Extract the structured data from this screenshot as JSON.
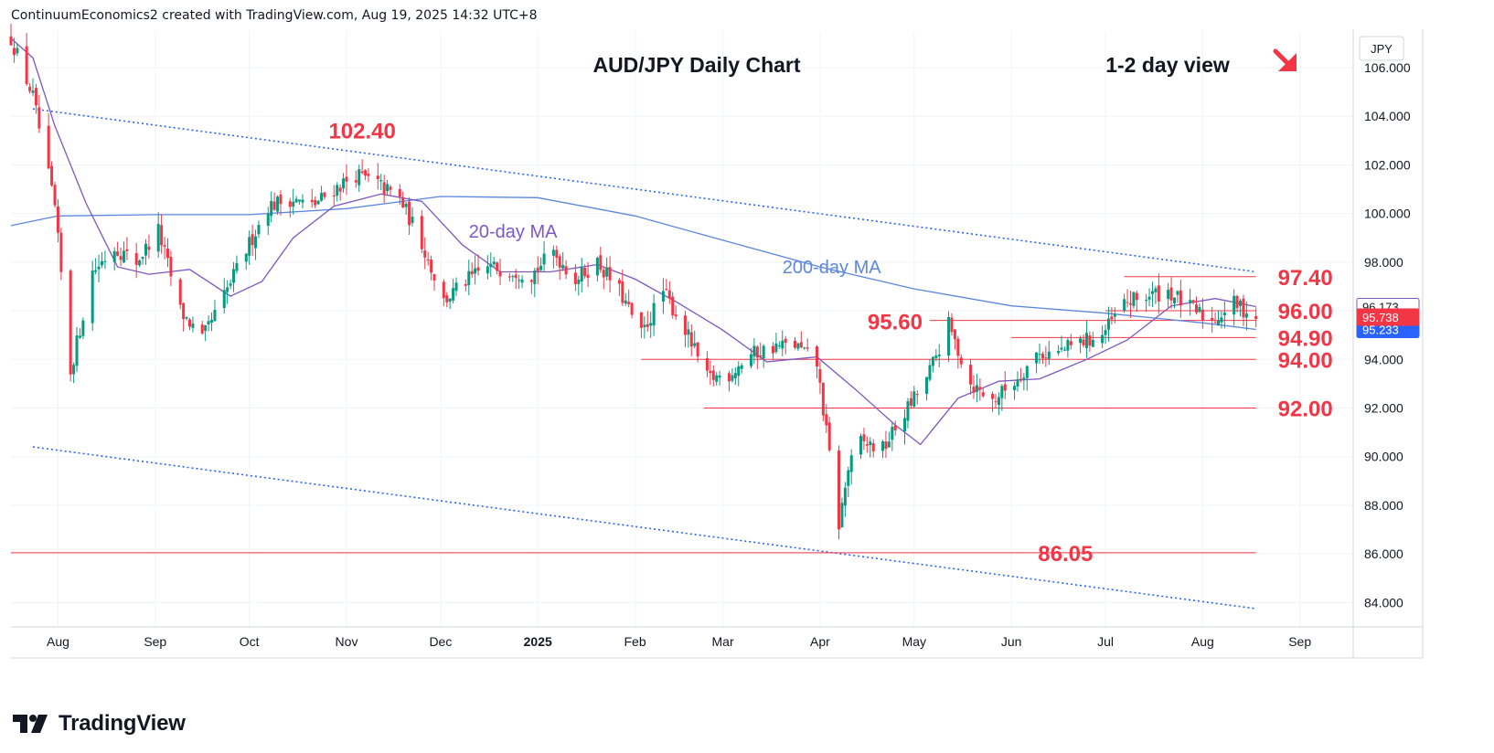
{
  "header": {
    "text": "ContinuumEconomics2 created with TradingView.com, Aug 19, 2025 14:32 UTC+8"
  },
  "footer": {
    "brand": "TradingView"
  },
  "colors": {
    "up": "#089981",
    "down": "#f23645",
    "ma20": "#7e57c2",
    "ma200": "#5b87e0",
    "trend": "#2962ff",
    "level": "#f23645",
    "price_badge": "#f23645",
    "ma_badge": "#2962ff"
  },
  "chart_data": {
    "type": "candlestick",
    "title": "AUD/JPY Daily Chart",
    "subtitle": "1-2 day view",
    "direction_icon": "arrow-down-right-icon",
    "currency": "JPY",
    "ylim": [
      83.0,
      107.5
    ],
    "xlim": [
      "2024-07-17",
      "2025-09-18"
    ],
    "y_ticks": [
      84,
      86,
      88,
      90,
      92,
      94,
      96,
      98,
      100,
      102,
      104,
      106
    ],
    "y_tick_labels": [
      "84.000",
      "86.000",
      "88.000",
      "90.000",
      "92.000",
      "94.000",
      "96.000",
      "98.000",
      "100.000",
      "102.000",
      "104.000",
      "106.000"
    ],
    "x_ticks": [
      {
        "date": "2024-08-01",
        "label": "Aug"
      },
      {
        "date": "2024-09-01",
        "label": "Sep"
      },
      {
        "date": "2024-10-01",
        "label": "Oct"
      },
      {
        "date": "2024-11-01",
        "label": "Nov"
      },
      {
        "date": "2024-12-01",
        "label": "Dec"
      },
      {
        "date": "2025-01-01",
        "label": "2025",
        "bold": true
      },
      {
        "date": "2025-02-01",
        "label": "Feb"
      },
      {
        "date": "2025-03-01",
        "label": "Mar"
      },
      {
        "date": "2025-04-01",
        "label": "Apr"
      },
      {
        "date": "2025-05-01",
        "label": "May"
      },
      {
        "date": "2025-06-01",
        "label": "Jun"
      },
      {
        "date": "2025-07-01",
        "label": "Jul"
      },
      {
        "date": "2025-08-01",
        "label": "Aug"
      },
      {
        "date": "2025-09-01",
        "label": "Sep"
      }
    ],
    "close_path": [
      [
        "2024-07-17",
        107.2
      ],
      [
        "2024-07-24",
        104.8
      ],
      [
        "2024-07-31",
        100.2
      ],
      [
        "2024-08-05",
        93.5
      ],
      [
        "2024-08-12",
        97.6
      ],
      [
        "2024-08-19",
        98.6
      ],
      [
        "2024-08-26",
        98.0
      ],
      [
        "2024-09-02",
        99.3
      ],
      [
        "2024-09-09",
        96.0
      ],
      [
        "2024-09-16",
        94.8
      ],
      [
        "2024-09-23",
        96.6
      ],
      [
        "2024-09-30",
        98.5
      ],
      [
        "2024-10-07",
        100.3
      ],
      [
        "2024-10-14",
        100.6
      ],
      [
        "2024-10-21",
        100.3
      ],
      [
        "2024-10-28",
        101.0
      ],
      [
        "2024-11-04",
        101.6
      ],
      [
        "2024-11-11",
        101.2
      ],
      [
        "2024-11-18",
        100.6
      ],
      [
        "2024-11-25",
        98.8
      ],
      [
        "2024-12-02",
        96.4
      ],
      [
        "2024-12-09",
        97.2
      ],
      [
        "2024-12-16",
        97.8
      ],
      [
        "2024-12-23",
        97.7
      ],
      [
        "2024-12-30",
        97.5
      ],
      [
        "2025-01-06",
        98.4
      ],
      [
        "2025-01-13",
        97.3
      ],
      [
        "2025-01-20",
        98.0
      ],
      [
        "2025-01-27",
        96.8
      ],
      [
        "2025-02-03",
        95.0
      ],
      [
        "2025-02-10",
        96.8
      ],
      [
        "2025-02-17",
        95.2
      ],
      [
        "2025-02-24",
        93.2
      ],
      [
        "2025-03-03",
        93.4
      ],
      [
        "2025-03-10",
        94.2
      ],
      [
        "2025-03-17",
        94.5
      ],
      [
        "2025-03-24",
        94.6
      ],
      [
        "2025-03-31",
        93.8
      ],
      [
        "2025-04-03",
        91.0
      ],
      [
        "2025-04-07",
        87.2
      ],
      [
        "2025-04-10",
        89.5
      ],
      [
        "2025-04-14",
        90.6
      ],
      [
        "2025-04-21",
        90.3
      ],
      [
        "2025-04-28",
        91.8
      ],
      [
        "2025-05-05",
        93.2
      ],
      [
        "2025-05-12",
        95.4
      ],
      [
        "2025-05-19",
        93.0
      ],
      [
        "2025-05-26",
        92.3
      ],
      [
        "2025-06-02",
        93.1
      ],
      [
        "2025-06-09",
        94.2
      ],
      [
        "2025-06-16",
        94.3
      ],
      [
        "2025-06-23",
        94.7
      ],
      [
        "2025-06-30",
        95.0
      ],
      [
        "2025-07-07",
        96.3
      ],
      [
        "2025-07-14",
        96.6
      ],
      [
        "2025-07-21",
        96.8
      ],
      [
        "2025-07-28",
        96.1
      ],
      [
        "2025-08-04",
        95.6
      ],
      [
        "2025-08-11",
        96.3
      ],
      [
        "2025-08-18",
        95.74
      ]
    ],
    "ma20": {
      "label": "20-day MA",
      "points": [
        [
          "2024-07-17",
          107.2
        ],
        [
          "2024-07-24",
          106.4
        ],
        [
          "2024-07-31",
          103.6
        ],
        [
          "2024-08-10",
          100.4
        ],
        [
          "2024-08-20",
          97.8
        ],
        [
          "2024-08-30",
          97.5
        ],
        [
          "2024-09-12",
          97.7
        ],
        [
          "2024-09-25",
          96.6
        ],
        [
          "2024-10-05",
          97.2
        ],
        [
          "2024-10-15",
          99.0
        ],
        [
          "2024-10-28",
          100.3
        ],
        [
          "2024-11-12",
          100.8
        ],
        [
          "2024-11-25",
          100.5
        ],
        [
          "2024-12-08",
          98.7
        ],
        [
          "2024-12-20",
          97.6
        ],
        [
          "2025-01-05",
          97.6
        ],
        [
          "2025-01-20",
          97.9
        ],
        [
          "2025-02-01",
          97.3
        ],
        [
          "2025-02-15",
          96.3
        ],
        [
          "2025-03-01",
          95.2
        ],
        [
          "2025-03-15",
          93.9
        ],
        [
          "2025-03-31",
          94.1
        ],
        [
          "2025-04-12",
          92.8
        ],
        [
          "2025-04-25",
          91.3
        ],
        [
          "2025-05-03",
          90.5
        ],
        [
          "2025-05-15",
          92.4
        ],
        [
          "2025-05-28",
          93.1
        ],
        [
          "2025-06-10",
          93.2
        ],
        [
          "2025-06-25",
          94.0
        ],
        [
          "2025-07-08",
          94.8
        ],
        [
          "2025-07-22",
          96.2
        ],
        [
          "2025-08-05",
          96.5
        ],
        [
          "2025-08-18",
          96.17
        ]
      ],
      "last_value": "96.173"
    },
    "ma200": {
      "label": "200-day MA",
      "points": [
        [
          "2024-07-17",
          99.5
        ],
        [
          "2024-08-01",
          99.9
        ],
        [
          "2024-09-01",
          99.95
        ],
        [
          "2024-10-01",
          99.95
        ],
        [
          "2024-11-01",
          100.2
        ],
        [
          "2024-12-01",
          100.7
        ],
        [
          "2025-01-01",
          100.65
        ],
        [
          "2025-02-01",
          99.9
        ],
        [
          "2025-03-01",
          98.9
        ],
        [
          "2025-04-01",
          97.8
        ],
        [
          "2025-05-01",
          96.9
        ],
        [
          "2025-06-01",
          96.2
        ],
        [
          "2025-07-01",
          95.9
        ],
        [
          "2025-08-01",
          95.5
        ],
        [
          "2025-08-18",
          95.23
        ]
      ],
      "last_value": "95.233"
    },
    "last_price": "95.738",
    "trendlines": [
      {
        "from": [
          "2024-07-24",
          104.3
        ],
        "to": [
          "2025-08-18",
          97.6
        ]
      },
      {
        "from": [
          "2024-07-24",
          90.4
        ],
        "to": [
          "2025-08-18",
          83.75
        ]
      }
    ],
    "levels": [
      {
        "price": 97.4,
        "label": "97.40",
        "from": "2025-07-07"
      },
      {
        "price": 96.0,
        "label": "96.00",
        "from": "2025-07-01"
      },
      {
        "price": 95.6,
        "label": "",
        "from": "2025-05-06"
      },
      {
        "price": 94.9,
        "label": "94.90",
        "from": "2025-06-01"
      },
      {
        "price": 94.0,
        "label": "94.00",
        "from": "2025-02-03"
      },
      {
        "price": 92.0,
        "label": "92.00",
        "from": "2025-02-23"
      },
      {
        "price": 86.05,
        "label": "86.05",
        "from": "2024-07-17"
      }
    ],
    "annotations": [
      {
        "text": "102.40",
        "date": "2024-11-06",
        "price": 102.4
      },
      {
        "text": "95.60",
        "date": "2025-05-06",
        "price": 95.6
      },
      {
        "text": "20-day MA",
        "date": "2024-12-10",
        "price": 99.0
      },
      {
        "text": "200-day MA",
        "date": "2025-03-20",
        "price": 97.4
      }
    ]
  }
}
